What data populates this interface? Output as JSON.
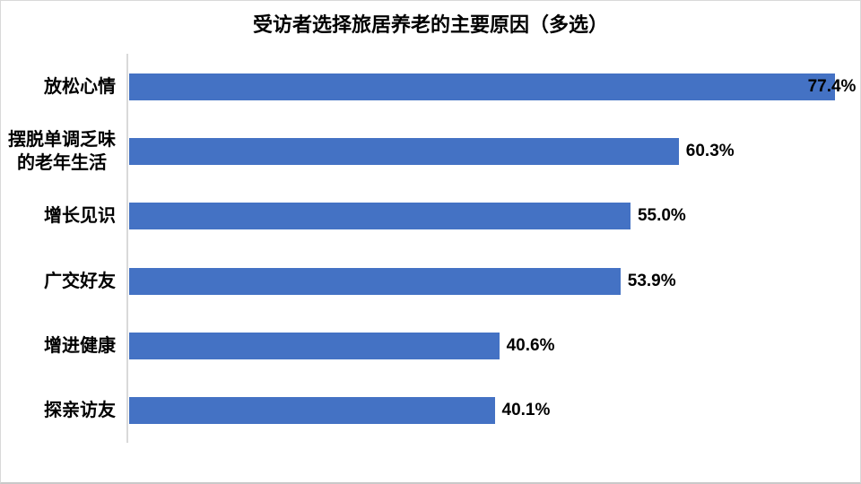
{
  "title": "受访者选择旅居养老的主要原因（多选）",
  "chart_data": {
    "type": "bar",
    "orientation": "horizontal",
    "title": "受访者选择旅居养老的主要原因（多选）",
    "categories": [
      "放松心情",
      "摆脱单调乏味的老年生活",
      "增长见识",
      "广交好友",
      "增进健康",
      "探亲访友"
    ],
    "wrapped_labels": [
      "放松心情",
      "摆脱单调乏味\n的老年生活",
      "增长见识",
      "广交好友",
      "增进健康",
      "探亲访友"
    ],
    "values": [
      77.4,
      60.3,
      55.0,
      53.9,
      40.6,
      40.1
    ],
    "value_labels": [
      "77.4%",
      "60.3%",
      "55.0%",
      "53.9%",
      "40.6%",
      "40.1%"
    ],
    "xlabel": "",
    "ylabel": "",
    "xlim": [
      0,
      80
    ],
    "grid": false,
    "legend": false,
    "bar_color": "#4472C4",
    "axis_line_color": "#D9D9D9",
    "label_color": "#000000"
  }
}
